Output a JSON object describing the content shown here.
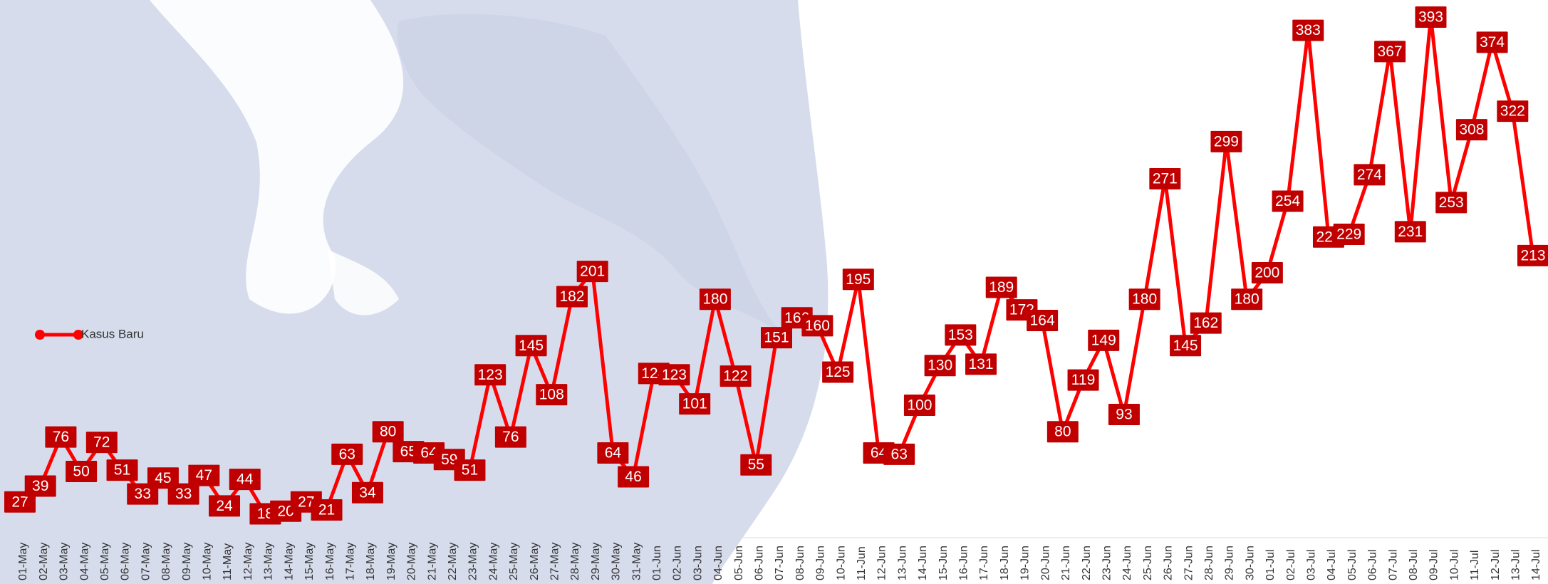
{
  "chart_data": {
    "type": "line",
    "categories": [
      "01-May",
      "02-May",
      "03-May",
      "04-May",
      "05-May",
      "06-May",
      "07-May",
      "08-May",
      "09-May",
      "10-May",
      "11-May",
      "12-May",
      "13-May",
      "14-May",
      "15-May",
      "16-May",
      "17-May",
      "18-May",
      "19-May",
      "20-May",
      "21-May",
      "22-May",
      "23-May",
      "24-May",
      "25-May",
      "26-May",
      "27-May",
      "28-May",
      "29-May",
      "30-May",
      "31-May",
      "01-Jun",
      "02-Jun",
      "03-Jun",
      "04-Jun",
      "05-Jun",
      "06-Jun",
      "07-Jun",
      "08-Jun",
      "09-Jun",
      "10-Jun",
      "11-Jun",
      "12-Jun",
      "13-Jun",
      "14-Jun",
      "15-Jun",
      "16-Jun",
      "17-Jun",
      "18-Jun",
      "19-Jun",
      "20-Jun",
      "21-Jun",
      "22-Jun",
      "23-Jun",
      "24-Jun",
      "25-Jun",
      "26-Jun",
      "27-Jun",
      "28-Jun",
      "29-Jun",
      "30-Jun",
      "01-Jul",
      "02-Jul",
      "03-Jul",
      "04-Jul",
      "05-Jul",
      "06-Jul",
      "07-Jul",
      "08-Jul",
      "09-Jul",
      "10-Jul",
      "11-Jul",
      "12-Jul",
      "13-Jul",
      "14-Jul"
    ],
    "series": [
      {
        "name": "Kasus Baru",
        "color": "#ff0000",
        "label_color": "#c00000",
        "values": [
          27,
          39,
          76,
          50,
          72,
          51,
          33,
          45,
          33,
          47,
          24,
          44,
          18,
          20,
          27,
          21,
          63,
          34,
          80,
          65,
          64,
          59,
          51,
          123,
          76,
          145,
          108,
          182,
          201,
          64,
          46,
          124,
          123,
          101,
          180,
          122,
          55,
          151,
          166,
          160,
          125,
          195,
          64,
          63,
          100,
          130,
          153,
          131,
          189,
          172,
          164,
          80,
          119,
          149,
          93,
          180,
          271,
          145,
          162,
          299,
          180,
          200,
          254,
          383,
          227,
          229,
          274,
          367,
          231,
          393,
          253,
          308,
          374,
          322,
          213
        ]
      }
    ],
    "ylim": [
      0,
      400
    ],
    "legend": "left"
  }
}
